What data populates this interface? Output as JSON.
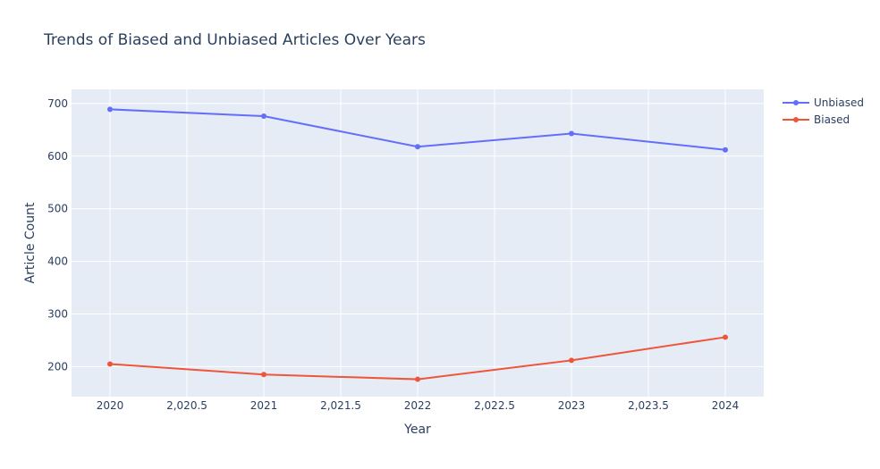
{
  "chart_data": {
    "type": "line",
    "title": "Trends of Biased and Unbiased Articles Over Years",
    "xlabel": "Year",
    "ylabel": "Article Count",
    "x": [
      2020,
      2021,
      2022,
      2023,
      2024
    ],
    "x_ticks": [
      2020,
      2020.5,
      2021,
      2021.5,
      2022,
      2022.5,
      2023,
      2023.5,
      2024
    ],
    "x_tick_labels": [
      "2020",
      "2,020.5",
      "2021",
      "2,021.5",
      "2022",
      "2,022.5",
      "2023",
      "2,023.5",
      "2024"
    ],
    "xlim": [
      2019.75,
      2024.25
    ],
    "y_ticks": [
      200,
      300,
      400,
      500,
      600,
      700
    ],
    "y_tick_labels": [
      "200",
      "300",
      "400",
      "500",
      "600",
      "700"
    ],
    "ylim": [
      143,
      727
    ],
    "grid": true,
    "legend_position": "top-right",
    "series": [
      {
        "name": "Unbiased",
        "color": "#636efa",
        "values": [
          689,
          676,
          618,
          643,
          612
        ]
      },
      {
        "name": "Biased",
        "color": "#ef553b",
        "values": [
          205,
          185,
          176,
          212,
          256
        ]
      }
    ]
  }
}
